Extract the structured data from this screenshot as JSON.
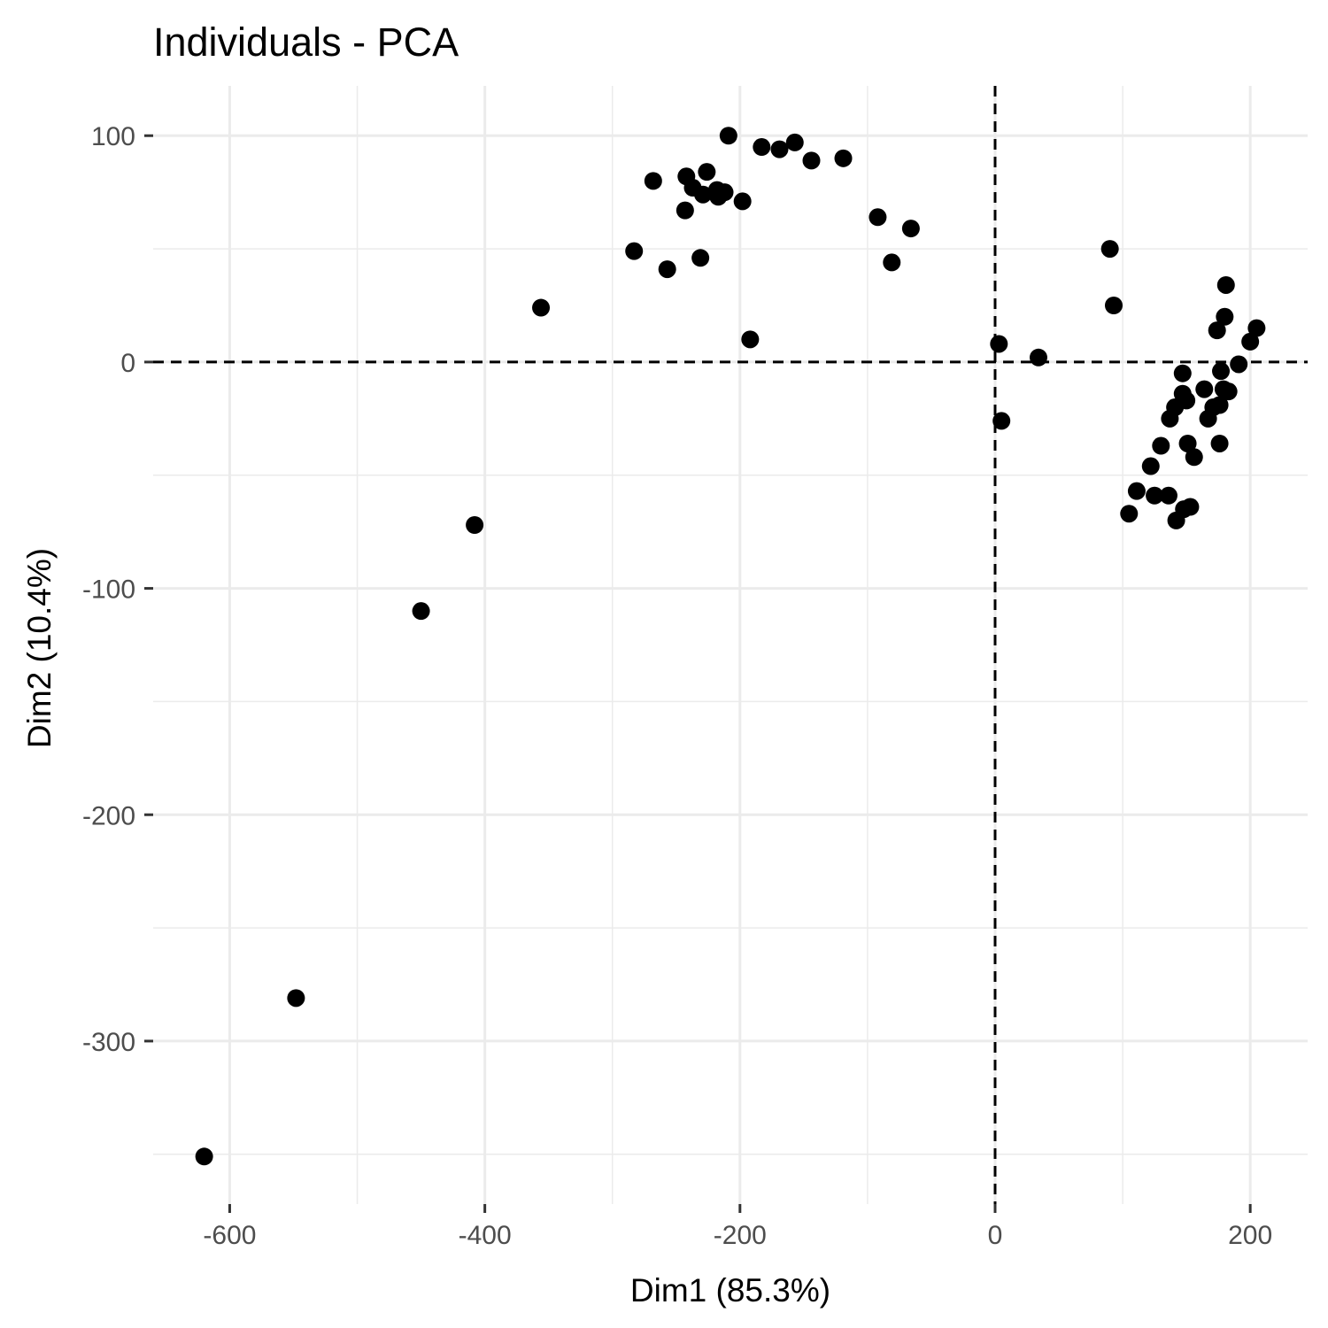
{
  "chart_data": {
    "type": "scatter",
    "title": "Individuals - PCA",
    "xlabel": "Dim1 (85.3%)",
    "ylabel": "Dim2 (10.4%)",
    "xlim": [
      -660,
      245
    ],
    "ylim": [
      -372,
      122
    ],
    "xticks": [
      -600,
      -400,
      -200,
      0,
      200
    ],
    "yticks": [
      -300,
      -200,
      -100,
      0,
      100
    ],
    "xminor": [
      -500,
      -300,
      -100,
      100
    ],
    "yminor": [
      -350,
      -250,
      -150,
      -50,
      50
    ],
    "grid": true,
    "reference_lines": {
      "x": 0,
      "y": 0,
      "style": "dashed"
    },
    "points": [
      {
        "x": -620,
        "y": -351
      },
      {
        "x": -548,
        "y": -281
      },
      {
        "x": -450,
        "y": -110
      },
      {
        "x": -408,
        "y": -72
      },
      {
        "x": -356,
        "y": 24
      },
      {
        "x": -283,
        "y": 49
      },
      {
        "x": -268,
        "y": 80
      },
      {
        "x": -257,
        "y": 41
      },
      {
        "x": -243,
        "y": 67
      },
      {
        "x": -242,
        "y": 82
      },
      {
        "x": -237,
        "y": 77
      },
      {
        "x": -231,
        "y": 46
      },
      {
        "x": -229,
        "y": 74
      },
      {
        "x": -226,
        "y": 84
      },
      {
        "x": -218,
        "y": 76
      },
      {
        "x": -217,
        "y": 73
      },
      {
        "x": -212,
        "y": 75
      },
      {
        "x": -209,
        "y": 100
      },
      {
        "x": -198,
        "y": 71
      },
      {
        "x": -192,
        "y": 10
      },
      {
        "x": -183,
        "y": 95
      },
      {
        "x": -169,
        "y": 94
      },
      {
        "x": -157,
        "y": 97
      },
      {
        "x": -144,
        "y": 89
      },
      {
        "x": -119,
        "y": 90
      },
      {
        "x": -92,
        "y": 64
      },
      {
        "x": -81,
        "y": 44
      },
      {
        "x": -66,
        "y": 59
      },
      {
        "x": 3,
        "y": 8
      },
      {
        "x": 5,
        "y": -26
      },
      {
        "x": 34,
        "y": 2
      },
      {
        "x": 90,
        "y": 50
      },
      {
        "x": 93,
        "y": 25
      },
      {
        "x": 105,
        "y": -67
      },
      {
        "x": 111,
        "y": -57
      },
      {
        "x": 122,
        "y": -46
      },
      {
        "x": 125,
        "y": -59
      },
      {
        "x": 130,
        "y": -37
      },
      {
        "x": 136,
        "y": -59
      },
      {
        "x": 137,
        "y": -25
      },
      {
        "x": 141,
        "y": -20
      },
      {
        "x": 142,
        "y": -70
      },
      {
        "x": 147,
        "y": -5
      },
      {
        "x": 147,
        "y": -14
      },
      {
        "x": 148,
        "y": -65
      },
      {
        "x": 150,
        "y": -17
      },
      {
        "x": 151,
        "y": -36
      },
      {
        "x": 153,
        "y": -64
      },
      {
        "x": 156,
        "y": -42
      },
      {
        "x": 164,
        "y": -12
      },
      {
        "x": 167,
        "y": -25
      },
      {
        "x": 171,
        "y": -20
      },
      {
        "x": 174,
        "y": 14
      },
      {
        "x": 176,
        "y": -36
      },
      {
        "x": 176,
        "y": -19
      },
      {
        "x": 177,
        "y": -4
      },
      {
        "x": 179,
        "y": -12
      },
      {
        "x": 180,
        "y": 20
      },
      {
        "x": 181,
        "y": 34
      },
      {
        "x": 183,
        "y": -13
      },
      {
        "x": 191,
        "y": -1
      },
      {
        "x": 200,
        "y": 9
      },
      {
        "x": 205,
        "y": 15
      }
    ]
  }
}
